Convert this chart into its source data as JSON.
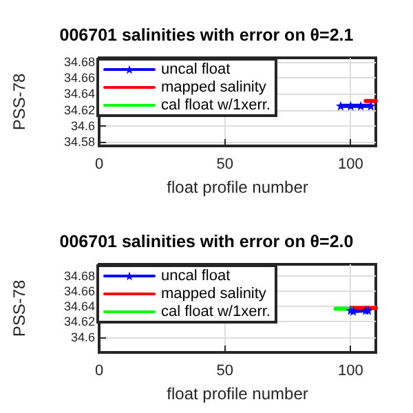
{
  "chart_data": [
    {
      "type": "line",
      "title": "006701 salinities with error on θ=2.1",
      "xlabel": "float profile number",
      "ylabel": "PSS-78",
      "xlim": [
        0,
        110
      ],
      "xticks": [
        0,
        50,
        100
      ],
      "ylim": [
        34.575,
        34.685
      ],
      "yticks": [
        34.58,
        34.6,
        34.62,
        34.64,
        34.66,
        34.68
      ],
      "grid": true,
      "legend": "top left",
      "series": [
        {
          "name": "uncal float",
          "color": "#0000ff",
          "marker": "star",
          "x": [
            96,
            100,
            104,
            108
          ],
          "values": [
            34.625,
            34.625,
            34.625,
            34.625
          ]
        },
        {
          "name": "mapped salinity",
          "color": "#ff0000",
          "marker": "none",
          "x": [
            106,
            110
          ],
          "values": [
            34.631,
            34.631
          ]
        },
        {
          "name": "cal float w/1xerr.",
          "color": "#00ff00",
          "marker": "none"
        }
      ]
    },
    {
      "type": "line",
      "title": "006701 salinities with error on θ=2.0",
      "xlabel": "float profile number",
      "ylabel": "PSS-78",
      "xlim": [
        0,
        110
      ],
      "xticks": [
        0,
        50,
        100
      ],
      "ylim": [
        34.58,
        34.695
      ],
      "yticks": [
        34.6,
        34.62,
        34.64,
        34.66,
        34.68
      ],
      "grid": true,
      "legend": "top left",
      "series": [
        {
          "name": "uncal float",
          "color": "#0000ff",
          "marker": "star",
          "x": [
            100,
            101,
            106,
            107
          ],
          "values": [
            34.635,
            34.634,
            34.635,
            34.635
          ]
        },
        {
          "name": "mapped salinity",
          "color": "#ff0000",
          "marker": "none",
          "x": [
            100,
            110
          ],
          "values": [
            34.638,
            34.638
          ]
        },
        {
          "name": "cal float w/1xerr.",
          "color": "#00ff00",
          "marker": "none",
          "x": [
            94,
            100
          ],
          "values": [
            34.637,
            34.637
          ]
        }
      ]
    }
  ]
}
